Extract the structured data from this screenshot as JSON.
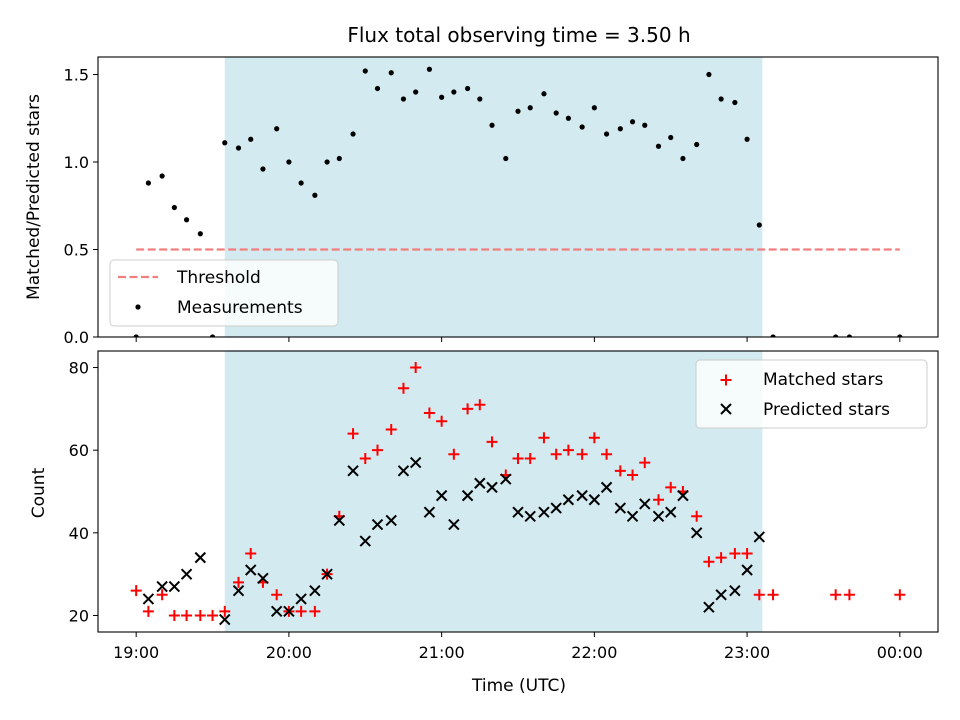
{
  "chart_data": [
    {
      "type": "scatter",
      "title": "Flux total observing time = 3.50 h",
      "ylabel": "Matched/Predicted stars",
      "xlabel": "",
      "xlim": [
        18.75,
        24.25
      ],
      "ylim": [
        0.0,
        1.6
      ],
      "x_ticks": [
        19,
        20,
        21,
        22,
        23,
        24
      ],
      "y_ticks": [
        0.0,
        0.5,
        1.0,
        1.5
      ],
      "y_tick_labels": [
        "0.0",
        "0.5",
        "1.0",
        "1.5"
      ],
      "shaded_span": [
        19.58,
        23.1
      ],
      "shade_color": "#d3eaf0",
      "threshold": {
        "label": "Threshold",
        "value": 0.5,
        "x_range": [
          19.0,
          24.0
        ],
        "color": "#f08080"
      },
      "legend_position": "lower-left",
      "series": [
        {
          "name": "Measurements",
          "color": "#000000",
          "x": [
            19.0,
            19.08,
            19.17,
            19.25,
            19.33,
            19.42,
            19.5,
            19.58,
            19.67,
            19.75,
            19.83,
            19.92,
            20.0,
            20.08,
            20.17,
            20.25,
            20.33,
            20.42,
            20.5,
            20.58,
            20.67,
            20.75,
            20.83,
            20.92,
            21.0,
            21.08,
            21.17,
            21.25,
            21.33,
            21.42,
            21.5,
            21.58,
            21.67,
            21.75,
            21.83,
            21.92,
            22.0,
            22.08,
            22.17,
            22.25,
            22.33,
            22.42,
            22.5,
            22.58,
            22.67,
            22.75,
            22.83,
            22.92,
            23.0,
            23.08,
            23.17,
            23.58,
            23.67,
            24.0
          ],
          "y": [
            0.0,
            0.88,
            0.92,
            0.74,
            0.67,
            0.59,
            0.0,
            1.11,
            1.08,
            1.13,
            0.96,
            1.19,
            1.0,
            0.88,
            0.81,
            1.0,
            1.02,
            1.16,
            1.52,
            1.42,
            1.51,
            1.36,
            1.4,
            1.53,
            1.37,
            1.4,
            1.42,
            1.36,
            1.21,
            1.02,
            1.29,
            1.31,
            1.39,
            1.28,
            1.25,
            1.2,
            1.31,
            1.16,
            1.19,
            1.23,
            1.21,
            1.09,
            1.14,
            1.02,
            1.1,
            1.5,
            1.36,
            1.34,
            1.13,
            0.64,
            0.0,
            0.0,
            0.0,
            0.0
          ]
        }
      ]
    },
    {
      "type": "scatter",
      "title": "",
      "ylabel": "Count",
      "xlabel": "Time (UTC)",
      "xlim": [
        18.75,
        24.25
      ],
      "ylim": [
        16,
        84
      ],
      "x_ticks": [
        19,
        20,
        21,
        22,
        23,
        24
      ],
      "x_tick_labels": [
        "19:00",
        "20:00",
        "21:00",
        "22:00",
        "23:00",
        "00:00"
      ],
      "y_ticks": [
        20,
        40,
        60,
        80
      ],
      "y_tick_labels": [
        "20",
        "40",
        "60",
        "80"
      ],
      "shaded_span": [
        19.58,
        23.1
      ],
      "shade_color": "#d3eaf0",
      "legend_position": "upper-right",
      "series": [
        {
          "name": "Matched stars",
          "marker": "plus",
          "color": "#ff0000",
          "x": [
            19.0,
            19.08,
            19.17,
            19.25,
            19.33,
            19.42,
            19.5,
            19.58,
            19.67,
            19.75,
            19.83,
            19.92,
            20.0,
            20.08,
            20.17,
            20.25,
            20.33,
            20.42,
            20.5,
            20.58,
            20.67,
            20.75,
            20.83,
            20.92,
            21.0,
            21.08,
            21.17,
            21.25,
            21.33,
            21.42,
            21.5,
            21.58,
            21.67,
            21.75,
            21.83,
            21.92,
            22.0,
            22.08,
            22.17,
            22.25,
            22.33,
            22.42,
            22.5,
            22.58,
            22.67,
            22.75,
            22.83,
            22.92,
            23.0,
            23.08,
            23.17,
            23.58,
            23.67,
            24.0
          ],
          "y": [
            26,
            21,
            25,
            20,
            20,
            20,
            20,
            21,
            28,
            35,
            28,
            25,
            21,
            21,
            21,
            30,
            44,
            64,
            58,
            60,
            65,
            75,
            80,
            69,
            67,
            59,
            70,
            71,
            62,
            54,
            58,
            58,
            63,
            59,
            60,
            59,
            63,
            59,
            55,
            54,
            57,
            48,
            51,
            50,
            44,
            33,
            34,
            35,
            35,
            25,
            25,
            25,
            25,
            25
          ]
        },
        {
          "name": "Predicted stars",
          "marker": "x",
          "color": "#000000",
          "x": [
            19.08,
            19.17,
            19.25,
            19.33,
            19.42,
            19.58,
            19.67,
            19.75,
            19.83,
            19.92,
            20.0,
            20.08,
            20.17,
            20.25,
            20.33,
            20.42,
            20.5,
            20.58,
            20.67,
            20.75,
            20.83,
            20.92,
            21.0,
            21.08,
            21.17,
            21.25,
            21.33,
            21.42,
            21.5,
            21.58,
            21.67,
            21.75,
            21.83,
            21.92,
            22.0,
            22.08,
            22.17,
            22.25,
            22.33,
            22.42,
            22.5,
            22.58,
            22.67,
            22.75,
            22.83,
            22.92,
            23.0,
            23.08
          ],
          "y": [
            24,
            27,
            27,
            30,
            34,
            19,
            26,
            31,
            29,
            21,
            21,
            24,
            26,
            30,
            43,
            55,
            38,
            42,
            43,
            55,
            57,
            45,
            49,
            42,
            49,
            52,
            51,
            53,
            45,
            44,
            45,
            46,
            48,
            49,
            48,
            51,
            46,
            44,
            47,
            44,
            45,
            49,
            40,
            22,
            25,
            26,
            31,
            39
          ]
        }
      ]
    }
  ]
}
